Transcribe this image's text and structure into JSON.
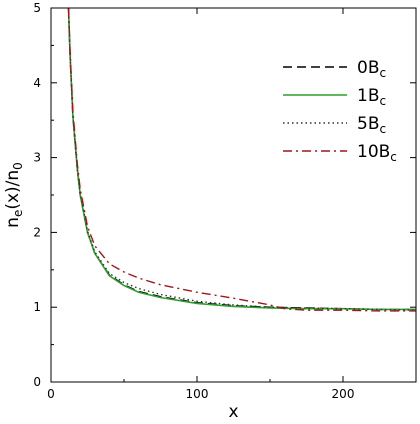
{
  "chart_data": {
    "type": "line",
    "xlabel": "x",
    "ylabel": "n_e(x)/n_0",
    "xlim": [
      0,
      250
    ],
    "ylim": [
      0,
      5
    ],
    "xticks": [
      0,
      100,
      200
    ],
    "yticks": [
      0,
      1,
      2,
      3,
      4,
      5
    ],
    "grid": false,
    "legend_position": "top-right",
    "series": [
      {
        "name": "0B_c",
        "color": "#000000",
        "style": "dash",
        "points": [
          [
            12,
            5.0
          ],
          [
            13,
            4.4
          ],
          [
            15,
            3.55
          ],
          [
            18,
            2.85
          ],
          [
            20,
            2.5
          ],
          [
            25,
            2.0
          ],
          [
            30,
            1.72
          ],
          [
            40,
            1.43
          ],
          [
            50,
            1.3
          ],
          [
            60,
            1.21
          ],
          [
            75,
            1.14
          ],
          [
            100,
            1.06
          ],
          [
            125,
            1.02
          ],
          [
            150,
            1.0
          ],
          [
            175,
            0.99
          ],
          [
            200,
            0.98
          ],
          [
            225,
            0.97
          ],
          [
            250,
            0.97
          ]
        ]
      },
      {
        "name": "1B_c",
        "color": "#2ca02c",
        "style": "solid",
        "points": [
          [
            12,
            5.0
          ],
          [
            13,
            4.4
          ],
          [
            15,
            3.55
          ],
          [
            18,
            2.85
          ],
          [
            20,
            2.5
          ],
          [
            25,
            2.0
          ],
          [
            30,
            1.72
          ],
          [
            40,
            1.42
          ],
          [
            50,
            1.29
          ],
          [
            60,
            1.2
          ],
          [
            75,
            1.13
          ],
          [
            100,
            1.05
          ],
          [
            125,
            1.01
          ],
          [
            150,
            0.99
          ],
          [
            175,
            0.98
          ],
          [
            200,
            0.98
          ],
          [
            225,
            0.97
          ],
          [
            250,
            0.97
          ]
        ]
      },
      {
        "name": "5B_c",
        "color": "#333333",
        "style": "dot",
        "points": [
          [
            12,
            5.0
          ],
          [
            13,
            4.4
          ],
          [
            15,
            3.56
          ],
          [
            18,
            2.86
          ],
          [
            20,
            2.52
          ],
          [
            25,
            2.02
          ],
          [
            30,
            1.74
          ],
          [
            40,
            1.45
          ],
          [
            50,
            1.33
          ],
          [
            60,
            1.25
          ],
          [
            75,
            1.17
          ],
          [
            100,
            1.08
          ],
          [
            125,
            1.03
          ],
          [
            150,
            1.0
          ],
          [
            175,
            0.99
          ],
          [
            200,
            0.98
          ],
          [
            225,
            0.97
          ],
          [
            250,
            0.96
          ]
        ]
      },
      {
        "name": "10B_c",
        "color": "#a0151b",
        "style": "dashdot",
        "points": [
          [
            12,
            5.0
          ],
          [
            13,
            4.45
          ],
          [
            15,
            3.62
          ],
          [
            18,
            2.92
          ],
          [
            20,
            2.58
          ],
          [
            25,
            2.08
          ],
          [
            30,
            1.82
          ],
          [
            40,
            1.58
          ],
          [
            50,
            1.47
          ],
          [
            60,
            1.39
          ],
          [
            75,
            1.3
          ],
          [
            100,
            1.2
          ],
          [
            125,
            1.12
          ],
          [
            150,
            1.03
          ],
          [
            160,
            0.98
          ],
          [
            175,
            0.96
          ],
          [
            200,
            0.96
          ],
          [
            225,
            0.95
          ],
          [
            250,
            0.95
          ]
        ]
      }
    ]
  }
}
